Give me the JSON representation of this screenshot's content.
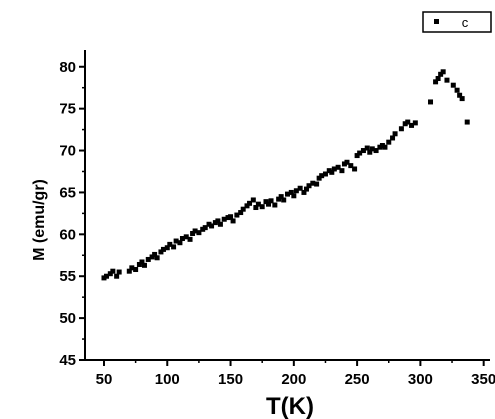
{
  "chart_data": {
    "type": "scatter",
    "title": "",
    "xlabel": "T(K)",
    "ylabel": "M (emu/gr)",
    "xlim": [
      35,
      355
    ],
    "ylim": [
      45,
      82
    ],
    "x_ticks": [
      50,
      100,
      150,
      200,
      250,
      300,
      350
    ],
    "y_ticks": [
      45,
      50,
      55,
      60,
      65,
      70,
      75,
      80
    ],
    "grid": false,
    "legend": {
      "position": "top-right",
      "entries": [
        "c"
      ]
    },
    "colors": {
      "marker": "#000000",
      "axis": "#000000"
    },
    "series": [
      {
        "name": "c",
        "points": [
          [
            50,
            54.8
          ],
          [
            52,
            55.0
          ],
          [
            55,
            55.3
          ],
          [
            57,
            55.6
          ],
          [
            60,
            55.0
          ],
          [
            62,
            55.5
          ],
          [
            70,
            55.6
          ],
          [
            72,
            56.0
          ],
          [
            75,
            55.8
          ],
          [
            78,
            56.4
          ],
          [
            80,
            56.7
          ],
          [
            82,
            56.3
          ],
          [
            85,
            57.0
          ],
          [
            88,
            57.3
          ],
          [
            90,
            57.6
          ],
          [
            92,
            57.2
          ],
          [
            95,
            57.9
          ],
          [
            97,
            58.2
          ],
          [
            100,
            58.4
          ],
          [
            102,
            58.8
          ],
          [
            105,
            58.5
          ],
          [
            107,
            59.2
          ],
          [
            110,
            59.0
          ],
          [
            112,
            59.5
          ],
          [
            115,
            59.7
          ],
          [
            118,
            59.4
          ],
          [
            120,
            60.1
          ],
          [
            122,
            60.4
          ],
          [
            125,
            60.2
          ],
          [
            128,
            60.6
          ],
          [
            130,
            60.8
          ],
          [
            133,
            61.2
          ],
          [
            135,
            61.0
          ],
          [
            138,
            61.4
          ],
          [
            140,
            61.6
          ],
          [
            142,
            61.2
          ],
          [
            145,
            61.8
          ],
          [
            148,
            62.0
          ],
          [
            150,
            62.1
          ],
          [
            152,
            61.6
          ],
          [
            155,
            62.3
          ],
          [
            158,
            62.6
          ],
          [
            160,
            63.0
          ],
          [
            163,
            63.4
          ],
          [
            165,
            63.7
          ],
          [
            168,
            64.1
          ],
          [
            170,
            63.2
          ],
          [
            172,
            63.6
          ],
          [
            175,
            63.3
          ],
          [
            178,
            63.9
          ],
          [
            180,
            63.6
          ],
          [
            182,
            64.0
          ],
          [
            185,
            63.5
          ],
          [
            188,
            64.2
          ],
          [
            190,
            64.5
          ],
          [
            192,
            64.1
          ],
          [
            195,
            64.8
          ],
          [
            198,
            65.0
          ],
          [
            200,
            64.6
          ],
          [
            202,
            65.2
          ],
          [
            205,
            65.5
          ],
          [
            208,
            65.0
          ],
          [
            210,
            65.4
          ],
          [
            212,
            65.8
          ],
          [
            215,
            66.1
          ],
          [
            218,
            66.0
          ],
          [
            220,
            66.7
          ],
          [
            222,
            67.0
          ],
          [
            225,
            67.2
          ],
          [
            228,
            67.6
          ],
          [
            230,
            67.4
          ],
          [
            232,
            67.8
          ],
          [
            235,
            68.0
          ],
          [
            238,
            67.6
          ],
          [
            240,
            68.4
          ],
          [
            242,
            68.6
          ],
          [
            245,
            68.2
          ],
          [
            248,
            67.8
          ],
          [
            250,
            69.4
          ],
          [
            252,
            69.7
          ],
          [
            255,
            70.0
          ],
          [
            258,
            70.3
          ],
          [
            260,
            69.8
          ],
          [
            262,
            70.2
          ],
          [
            265,
            70.0
          ],
          [
            268,
            70.4
          ],
          [
            270,
            70.6
          ],
          [
            272,
            70.4
          ],
          [
            275,
            71.0
          ],
          [
            278,
            71.5
          ],
          [
            280,
            72.0
          ],
          [
            285,
            72.6
          ],
          [
            288,
            73.2
          ],
          [
            290,
            73.4
          ],
          [
            293,
            73.0
          ],
          [
            296,
            73.3
          ],
          [
            308,
            75.8
          ],
          [
            312,
            78.2
          ],
          [
            314,
            78.6
          ],
          [
            316,
            79.1
          ],
          [
            318,
            79.4
          ],
          [
            321,
            78.4
          ],
          [
            326,
            77.8
          ],
          [
            329,
            77.2
          ],
          [
            331,
            76.6
          ],
          [
            333,
            76.2
          ],
          [
            337,
            73.4
          ]
        ]
      }
    ]
  }
}
